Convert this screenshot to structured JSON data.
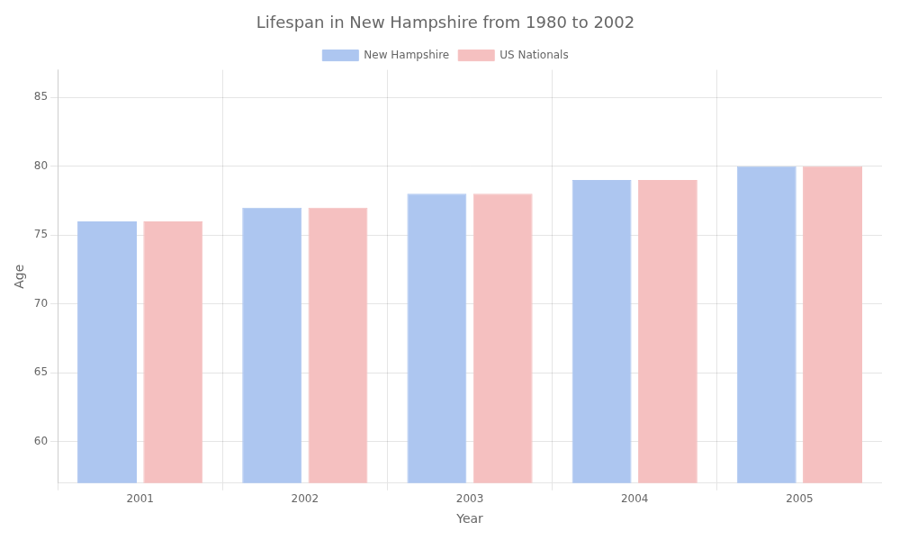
{
  "chart_data": {
    "type": "bar",
    "title": "Lifespan in New Hampshire from 1980 to 2002",
    "xlabel": "Year",
    "ylabel": "Age",
    "categories": [
      "2001",
      "2002",
      "2003",
      "2004",
      "2005"
    ],
    "series": [
      {
        "name": "New Hampshire",
        "color": "#adc6f0",
        "values": [
          76,
          77,
          78,
          79,
          80
        ]
      },
      {
        "name": "US Nationals",
        "color": "#f5c0c0",
        "values": [
          76,
          77,
          78,
          79,
          80
        ]
      }
    ],
    "ylim": [
      57,
      87
    ],
    "yticks": [
      60,
      65,
      70,
      75,
      80,
      85
    ],
    "grid": true,
    "legend": "top"
  }
}
